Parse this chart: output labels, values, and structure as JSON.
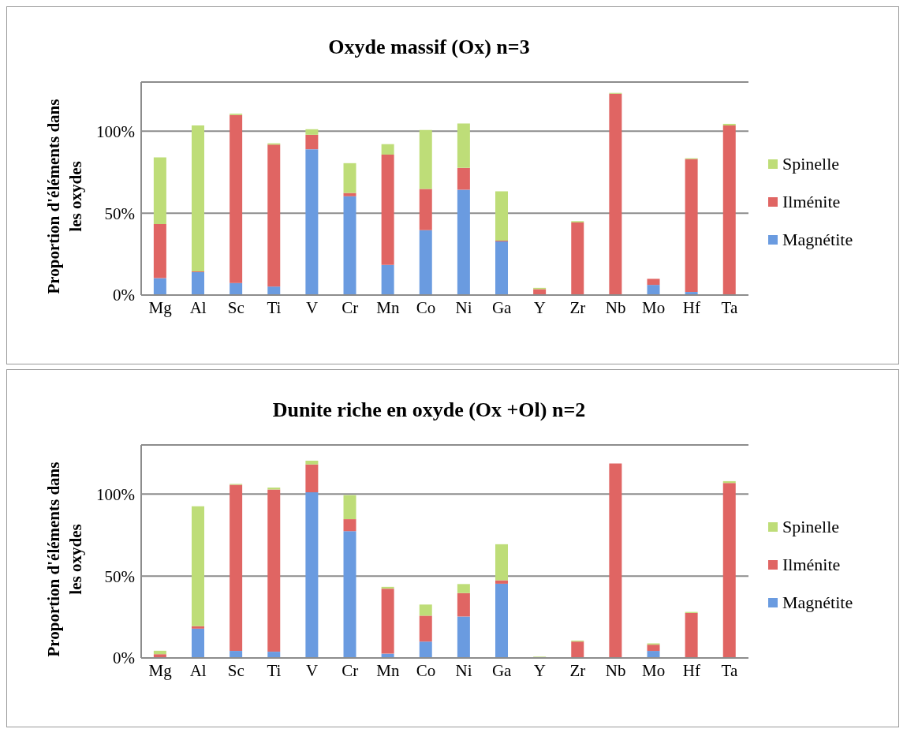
{
  "chart_data": [
    {
      "type": "bar",
      "title": "Oxyde massif (Ox) n=3",
      "ylabel": "Proportion d'éléments dans les oxydes",
      "categories": [
        "Mg",
        "Al",
        "Sc",
        "Ti",
        "V",
        "Cr",
        "Mn",
        "Co",
        "Ni",
        "Ga",
        "Y",
        "Zr",
        "Nb",
        "Mo",
        "Hf",
        "Ta"
      ],
      "stacked": true,
      "legend": "right",
      "grid": "y",
      "ylim": [
        0,
        130
      ],
      "yticks": [
        {
          "value": 0,
          "label": "0%"
        },
        {
          "value": 50,
          "label": "50%"
        },
        {
          "value": 100,
          "label": "100%"
        }
      ],
      "series": [
        {
          "name": "Magnétite",
          "color": "#6a9be0",
          "values": [
            10.3,
            14,
            7.4,
            5.2,
            89,
            60.3,
            18.4,
            39.6,
            64.3,
            32.7,
            null,
            0,
            null,
            6.2,
            1.9,
            null
          ]
        },
        {
          "name": "Ilménite",
          "color": "#e06563",
          "values": [
            33,
            0.5,
            102.5,
            86.6,
            8.8,
            2,
            67.3,
            25.2,
            13.3,
            0.5,
            3.6,
            44.3,
            122.9,
            3.7,
            81.1,
            103.5
          ]
        },
        {
          "name": "Spinelle",
          "color": "#bedd78",
          "values": [
            40.7,
            89,
            0.8,
            0.8,
            3.4,
            18.2,
            6.4,
            35.9,
            27.1,
            30.1,
            0.8,
            0.8,
            0.5,
            null,
            0.5,
            1
          ]
        }
      ]
    },
    {
      "type": "bar",
      "title": "Dunite riche en oxyde (Ox +Ol) n=2",
      "ylabel": "Proportion d'éléments dans les oxydes",
      "categories": [
        "Mg",
        "Al",
        "Sc",
        "Ti",
        "V",
        "Cr",
        "Mn",
        "Co",
        "Ni",
        "Ga",
        "Y",
        "Zr",
        "Nb",
        "Mo",
        "Hf",
        "Ta"
      ],
      "stacked": true,
      "legend": "right",
      "grid": "y",
      "ylim": [
        0,
        130
      ],
      "yticks": [
        {
          "value": 0,
          "label": "0%"
        },
        {
          "value": 50,
          "label": "50%"
        },
        {
          "value": 100,
          "label": "100%"
        }
      ],
      "series": [
        {
          "name": "Magnétite",
          "color": "#6a9be0",
          "values": [
            null,
            17.9,
            4.3,
            3.8,
            101.1,
            77.4,
            2.6,
            10,
            25.3,
            45.3,
            0,
            0,
            0,
            4.3,
            0,
            0
          ]
        },
        {
          "name": "Ilménite",
          "color": "#e06563",
          "values": [
            2.3,
            1.5,
            101.4,
            99,
            17,
            7.3,
            39.7,
            15.8,
            14.3,
            2.1,
            null,
            10,
            118.7,
            3.8,
            27.5,
            106.8
          ]
        },
        {
          "name": "Spinelle",
          "color": "#bedd78",
          "values": [
            2.1,
            73.2,
            0.5,
            1.2,
            2.3,
            14.7,
            1.1,
            6.8,
            5.5,
            22,
            0.8,
            0.6,
            0,
            0.8,
            0.6,
            1.1
          ]
        }
      ]
    }
  ]
}
